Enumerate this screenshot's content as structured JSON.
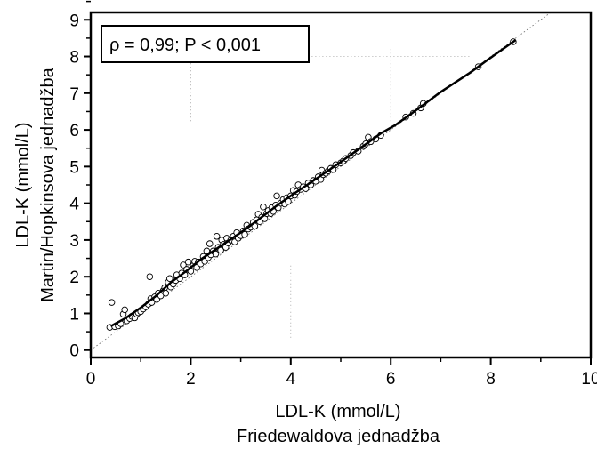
{
  "chart_data": {
    "type": "scatter",
    "xlabel": "LDL-K (mmol/L)",
    "xlabel_line2": "Friedewaldova jednadžba",
    "ylabel": "LDL-K (mmol/L)",
    "ylabel_line2": "Martin/Hopkinsova jednadžba",
    "annotation": "ρ = 0,99; P < 0,001",
    "xlim": [
      0,
      10
    ],
    "ylim": [
      -0.2,
      9.2
    ],
    "x_ticks": [
      "0",
      "2",
      "4",
      "6",
      "8",
      "10"
    ],
    "y_ticks": [
      "0",
      "1",
      "2",
      "3",
      "4",
      "5",
      "6",
      "7",
      "8",
      "9"
    ],
    "identity_line": true,
    "grid": "dotted, sparse",
    "points": [
      [
        0.38,
        0.62
      ],
      [
        0.42,
        1.3
      ],
      [
        0.48,
        0.64
      ],
      [
        0.55,
        0.66
      ],
      [
        0.6,
        0.72
      ],
      [
        0.65,
        0.98
      ],
      [
        0.68,
        1.1
      ],
      [
        0.72,
        0.8
      ],
      [
        0.78,
        0.86
      ],
      [
        0.82,
        0.92
      ],
      [
        0.88,
        0.88
      ],
      [
        0.92,
        0.98
      ],
      [
        0.95,
        1.02
      ],
      [
        1.0,
        1.05
      ],
      [
        1.05,
        1.12
      ],
      [
        1.1,
        1.18
      ],
      [
        1.15,
        1.25
      ],
      [
        1.18,
        2.0
      ],
      [
        1.2,
        1.4
      ],
      [
        1.22,
        1.3
      ],
      [
        1.28,
        1.45
      ],
      [
        1.32,
        1.38
      ],
      [
        1.35,
        1.55
      ],
      [
        1.4,
        1.48
      ],
      [
        1.45,
        1.62
      ],
      [
        1.48,
        1.7
      ],
      [
        1.5,
        1.55
      ],
      [
        1.55,
        1.85
      ],
      [
        1.58,
        1.95
      ],
      [
        1.6,
        1.72
      ],
      [
        1.65,
        1.8
      ],
      [
        1.7,
        1.9
      ],
      [
        1.72,
        2.05
      ],
      [
        1.78,
        1.95
      ],
      [
        1.82,
        2.1
      ],
      [
        1.85,
        2.32
      ],
      [
        1.88,
        2.05
      ],
      [
        1.92,
        2.2
      ],
      [
        1.95,
        2.4
      ],
      [
        2.0,
        2.15
      ],
      [
        2.05,
        2.3
      ],
      [
        2.08,
        2.42
      ],
      [
        2.12,
        2.25
      ],
      [
        2.15,
        2.4
      ],
      [
        2.2,
        2.35
      ],
      [
        2.25,
        2.55
      ],
      [
        2.28,
        2.42
      ],
      [
        2.32,
        2.7
      ],
      [
        2.35,
        2.52
      ],
      [
        2.38,
        2.9
      ],
      [
        2.4,
        2.6
      ],
      [
        2.45,
        2.7
      ],
      [
        2.5,
        2.62
      ],
      [
        2.52,
        3.1
      ],
      [
        2.55,
        2.8
      ],
      [
        2.6,
        2.72
      ],
      [
        2.62,
        3.0
      ],
      [
        2.65,
        2.88
      ],
      [
        2.7,
        2.8
      ],
      [
        2.72,
        3.05
      ],
      [
        2.75,
        2.92
      ],
      [
        2.8,
        3.0
      ],
      [
        2.85,
        3.1
      ],
      [
        2.88,
        2.95
      ],
      [
        2.92,
        3.2
      ],
      [
        2.95,
        3.05
      ],
      [
        3.0,
        3.12
      ],
      [
        3.05,
        3.25
      ],
      [
        3.08,
        3.15
      ],
      [
        3.12,
        3.4
      ],
      [
        3.15,
        3.3
      ],
      [
        3.2,
        3.35
      ],
      [
        3.25,
        3.48
      ],
      [
        3.28,
        3.38
      ],
      [
        3.32,
        3.55
      ],
      [
        3.35,
        3.7
      ],
      [
        3.38,
        3.5
      ],
      [
        3.42,
        3.62
      ],
      [
        3.45,
        3.9
      ],
      [
        3.48,
        3.58
      ],
      [
        3.52,
        3.72
      ],
      [
        3.55,
        3.8
      ],
      [
        3.6,
        3.72
      ],
      [
        3.62,
        3.88
      ],
      [
        3.65,
        3.78
      ],
      [
        3.7,
        3.95
      ],
      [
        3.72,
        4.2
      ],
      [
        3.75,
        3.88
      ],
      [
        3.8,
        4.0
      ],
      [
        3.85,
        4.1
      ],
      [
        3.88,
        3.98
      ],
      [
        3.92,
        4.15
      ],
      [
        3.95,
        4.05
      ],
      [
        4.0,
        4.2
      ],
      [
        4.05,
        4.35
      ],
      [
        4.08,
        4.22
      ],
      [
        4.12,
        4.32
      ],
      [
        4.15,
        4.5
      ],
      [
        4.2,
        4.38
      ],
      [
        4.25,
        4.45
      ],
      [
        4.3,
        4.4
      ],
      [
        4.35,
        4.55
      ],
      [
        4.4,
        4.5
      ],
      [
        4.45,
        4.62
      ],
      [
        4.5,
        4.6
      ],
      [
        4.55,
        4.72
      ],
      [
        4.6,
        4.65
      ],
      [
        4.62,
        4.9
      ],
      [
        4.65,
        4.78
      ],
      [
        4.7,
        4.82
      ],
      [
        4.75,
        4.88
      ],
      [
        4.8,
        4.95
      ],
      [
        4.85,
        4.92
      ],
      [
        4.9,
        5.05
      ],
      [
        5.0,
        5.1
      ],
      [
        5.05,
        5.15
      ],
      [
        5.1,
        5.22
      ],
      [
        5.2,
        5.3
      ],
      [
        5.25,
        5.38
      ],
      [
        5.35,
        5.42
      ],
      [
        5.45,
        5.55
      ],
      [
        5.5,
        5.62
      ],
      [
        5.55,
        5.8
      ],
      [
        5.6,
        5.68
      ],
      [
        5.7,
        5.75
      ],
      [
        5.8,
        5.85
      ],
      [
        6.3,
        6.35
      ],
      [
        6.45,
        6.45
      ],
      [
        6.6,
        6.6
      ],
      [
        6.65,
        6.72
      ],
      [
        7.75,
        7.72
      ],
      [
        8.45,
        8.4
      ]
    ]
  }
}
